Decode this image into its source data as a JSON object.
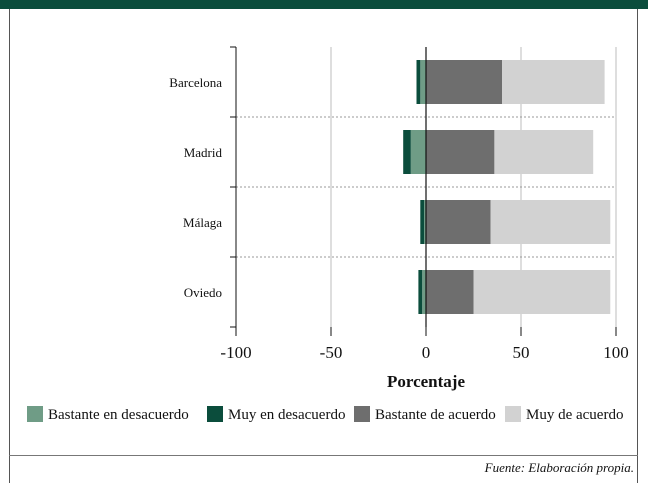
{
  "colors": {
    "top_band": "#0b4d3c",
    "bastante_desacuerdo": "#6f9c86",
    "muy_desacuerdo": "#0b4d3c",
    "bastante_acuerdo": "#6e6e6e",
    "muy_acuerdo": "#d2d2d2"
  },
  "chart_data": {
    "type": "bar",
    "orientation": "horizontal",
    "stacked": "diverging",
    "title": "",
    "xlabel": "Porcentaje",
    "ylabel": "",
    "xlim": [
      -100,
      100
    ],
    "xticks": [
      -100,
      -50,
      0,
      50,
      100
    ],
    "grid": "vertical",
    "legend_position": "bottom",
    "categories": [
      "Barcelona",
      "Madrid",
      "Málaga",
      "Oviedo"
    ],
    "series": [
      {
        "name": "Bastante en desacuerdo",
        "side": "negative",
        "color": "#6f9c86",
        "values": [
          3,
          8,
          1,
          2
        ]
      },
      {
        "name": "Muy en desacuerdo",
        "side": "negative",
        "color": "#0b4d3c",
        "values": [
          2,
          4,
          2,
          2
        ]
      },
      {
        "name": "Bastante de acuerdo",
        "side": "positive",
        "color": "#6e6e6e",
        "values": [
          40,
          36,
          34,
          25
        ]
      },
      {
        "name": "Muy de acuerdo",
        "side": "positive",
        "color": "#d2d2d2",
        "values": [
          54,
          52,
          63,
          72
        ]
      }
    ]
  },
  "footer": {
    "source": "Fuente: Elaboración propia."
  }
}
